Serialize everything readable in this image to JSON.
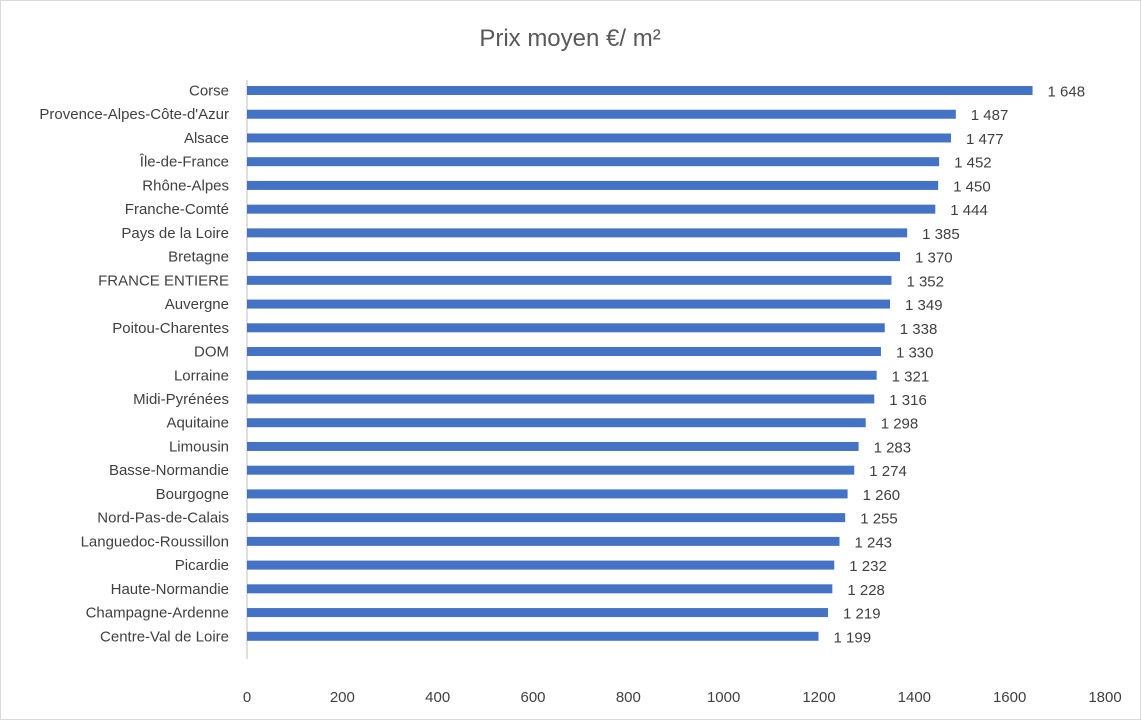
{
  "chart_data": {
    "type": "bar",
    "orientation": "horizontal",
    "title": "Prix moyen €/ m²",
    "xlabel": "",
    "ylabel": "",
    "xlim": [
      0,
      1800
    ],
    "x_ticks": [
      0,
      200,
      400,
      600,
      800,
      1000,
      1200,
      1400,
      1600,
      1800
    ],
    "grid": false,
    "legend": "none",
    "bar_color": "#4472C4",
    "categories": [
      "Corse",
      "Provence-Alpes-Côte-d'Azur",
      "Alsace",
      "Île-de-France",
      "Rhône-Alpes",
      "Franche-Comté",
      "Pays de la Loire",
      "Bretagne",
      "FRANCE ENTIERE",
      "Auvergne",
      "Poitou-Charentes",
      "DOM",
      "Lorraine",
      "Midi-Pyrénées",
      "Aquitaine",
      "Limousin",
      "Basse-Normandie",
      "Bourgogne",
      "Nord-Pas-de-Calais",
      "Languedoc-Roussillon",
      "Picardie",
      "Haute-Normandie",
      "Champagne-Ardenne",
      "Centre-Val de Loire"
    ],
    "values": [
      1648,
      1487,
      1477,
      1452,
      1450,
      1444,
      1385,
      1370,
      1352,
      1349,
      1338,
      1330,
      1321,
      1316,
      1298,
      1283,
      1274,
      1260,
      1255,
      1243,
      1232,
      1228,
      1219,
      1199
    ],
    "value_labels": [
      "1 648",
      "1 487",
      "1 477",
      "1 452",
      "1 450",
      "1 444",
      "1 385",
      "1 370",
      "1 352",
      "1 349",
      "1 338",
      "1 330",
      "1 321",
      "1 316",
      "1 298",
      "1 283",
      "1 274",
      "1 260",
      "1 255",
      "1 243",
      "1 232",
      "1 228",
      "1 219",
      "1 199"
    ]
  }
}
